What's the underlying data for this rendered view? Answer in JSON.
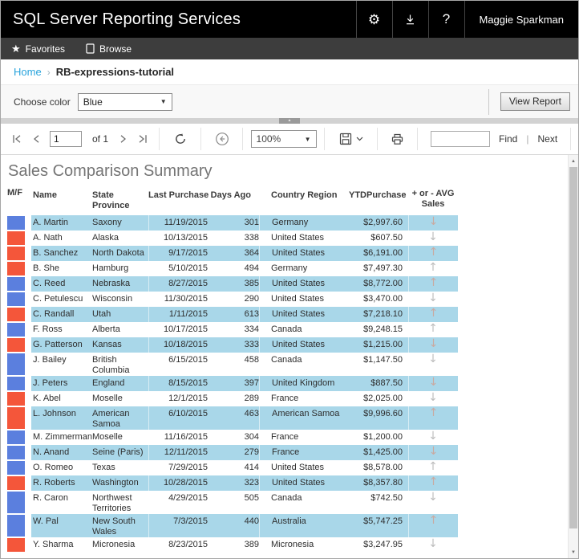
{
  "topbar": {
    "title": "SQL Server Reporting Services",
    "help_label": "?",
    "user_name": "Maggie Sparkman"
  },
  "navbar": {
    "favorites_label": "Favorites",
    "browse_label": "Browse"
  },
  "breadcrumb": {
    "home": "Home",
    "separator": "›",
    "current": "RB-expressions-tutorial"
  },
  "parameters": {
    "label": "Choose color",
    "value": "Blue",
    "view_report_label": "View Report"
  },
  "viewer_toolbar": {
    "current_page": "1",
    "page_count_label": "of 1",
    "zoom_value": "100%",
    "find_value": "",
    "find_label": "Find",
    "pipe": "|",
    "next_label": "Next"
  },
  "report": {
    "title": "Sales Comparison Summary",
    "columns": [
      {
        "key": "mf",
        "label": "M/F"
      },
      {
        "key": "name",
        "label": "Name"
      },
      {
        "key": "state",
        "label": "State Province"
      },
      {
        "key": "last_purchase",
        "label": "Last Purchase"
      },
      {
        "key": "days_ago",
        "label": "Days Ago"
      },
      {
        "key": "country",
        "label": "Country Region"
      },
      {
        "key": "ytd",
        "label": "YTDPurchase"
      },
      {
        "key": "trend",
        "label": "+ or - AVG Sales"
      }
    ],
    "rows": [
      {
        "square": "blue",
        "name": "A. Martin",
        "state": "Saxony",
        "last_purchase": "11/19/2015",
        "days_ago": "301",
        "country": "Germany",
        "ytd": "$2,997.60",
        "trend": "down"
      },
      {
        "square": "red",
        "name": "A. Nath",
        "state": "Alaska",
        "last_purchase": "10/13/2015",
        "days_ago": "338",
        "country": "United States",
        "ytd": "$607.50",
        "trend": "down"
      },
      {
        "square": "red",
        "name": "B. Sanchez",
        "state": "North Dakota",
        "last_purchase": "9/17/2015",
        "days_ago": "364",
        "country": "United States",
        "ytd": "$6,191.00",
        "trend": "up"
      },
      {
        "square": "red",
        "name": "B. She",
        "state": "Hamburg",
        "last_purchase": "5/10/2015",
        "days_ago": "494",
        "country": "Germany",
        "ytd": "$7,497.30",
        "trend": "up"
      },
      {
        "square": "blue",
        "name": "C. Reed",
        "state": "Nebraska",
        "last_purchase": "8/27/2015",
        "days_ago": "385",
        "country": "United States",
        "ytd": "$8,772.00",
        "trend": "up"
      },
      {
        "square": "blue",
        "name": "C. Petulescu",
        "state": "Wisconsin",
        "last_purchase": "11/30/2015",
        "days_ago": "290",
        "country": "United States",
        "ytd": "$3,470.00",
        "trend": "down"
      },
      {
        "square": "red",
        "name": "C. Randall",
        "state": "Utah",
        "last_purchase": "1/11/2015",
        "days_ago": "613",
        "country": "United States",
        "ytd": "$7,218.10",
        "trend": "up"
      },
      {
        "square": "blue",
        "name": "F. Ross",
        "state": "Alberta",
        "last_purchase": "10/17/2015",
        "days_ago": "334",
        "country": "Canada",
        "ytd": "$9,248.15",
        "trend": "up"
      },
      {
        "square": "red",
        "name": "G. Patterson",
        "state": "Kansas",
        "last_purchase": "10/18/2015",
        "days_ago": "333",
        "country": "United States",
        "ytd": "$1,215.00",
        "trend": "down"
      },
      {
        "square": "blue",
        "name": "J. Bailey",
        "state": "British Columbia",
        "last_purchase": "6/15/2015",
        "days_ago": "458",
        "country": "Canada",
        "ytd": "$1,147.50",
        "trend": "down"
      },
      {
        "square": "blue",
        "name": "J. Peters",
        "state": "England",
        "last_purchase": "8/15/2015",
        "days_ago": "397",
        "country": "United Kingdom",
        "ytd": "$887.50",
        "trend": "down"
      },
      {
        "square": "red",
        "name": "K. Abel",
        "state": "Moselle",
        "last_purchase": "12/1/2015",
        "days_ago": "289",
        "country": "France",
        "ytd": "$2,025.00",
        "trend": "down"
      },
      {
        "square": "red",
        "name": "L. Johnson",
        "state": "American Samoa",
        "last_purchase": "6/10/2015",
        "days_ago": "463",
        "country": "American Samoa",
        "ytd": "$9,996.60",
        "trend": "up"
      },
      {
        "square": "blue",
        "name": "M. Zimmerman",
        "state": "Moselle",
        "last_purchase": "11/16/2015",
        "days_ago": "304",
        "country": "France",
        "ytd": "$1,200.00",
        "trend": "down"
      },
      {
        "square": "blue",
        "name": "N. Anand",
        "state": "Seine (Paris)",
        "last_purchase": "12/11/2015",
        "days_ago": "279",
        "country": "France",
        "ytd": "$1,425.00",
        "trend": "down"
      },
      {
        "square": "blue",
        "name": "O. Romeo",
        "state": "Texas",
        "last_purchase": "7/29/2015",
        "days_ago": "414",
        "country": "United States",
        "ytd": "$8,578.00",
        "trend": "up"
      },
      {
        "square": "red",
        "name": "R. Roberts",
        "state": "Washington",
        "last_purchase": "10/28/2015",
        "days_ago": "323",
        "country": "United States",
        "ytd": "$8,357.80",
        "trend": "up"
      },
      {
        "square": "blue",
        "name": "R. Caron",
        "state": "Northwest Territories",
        "last_purchase": "4/29/2015",
        "days_ago": "505",
        "country": "Canada",
        "ytd": "$742.50",
        "trend": "down"
      },
      {
        "square": "blue",
        "name": "W. Pal",
        "state": "New South Wales",
        "last_purchase": "7/3/2015",
        "days_ago": "440",
        "country": "Australia",
        "ytd": "$5,747.25",
        "trend": "up"
      },
      {
        "square": "red",
        "name": "Y. Sharma",
        "state": "Micronesia",
        "last_purchase": "8/23/2015",
        "days_ago": "389",
        "country": "Micronesia",
        "ytd": "$3,247.95",
        "trend": "down"
      }
    ]
  },
  "colors": {
    "squares": {
      "blue": "#5b7fde",
      "red": "#f4563a"
    },
    "row_stripe": "#a9d7e9",
    "home_link": "#27a3dc",
    "topbar_bg": "#000000",
    "navbar_bg": "#3d3d3d"
  }
}
